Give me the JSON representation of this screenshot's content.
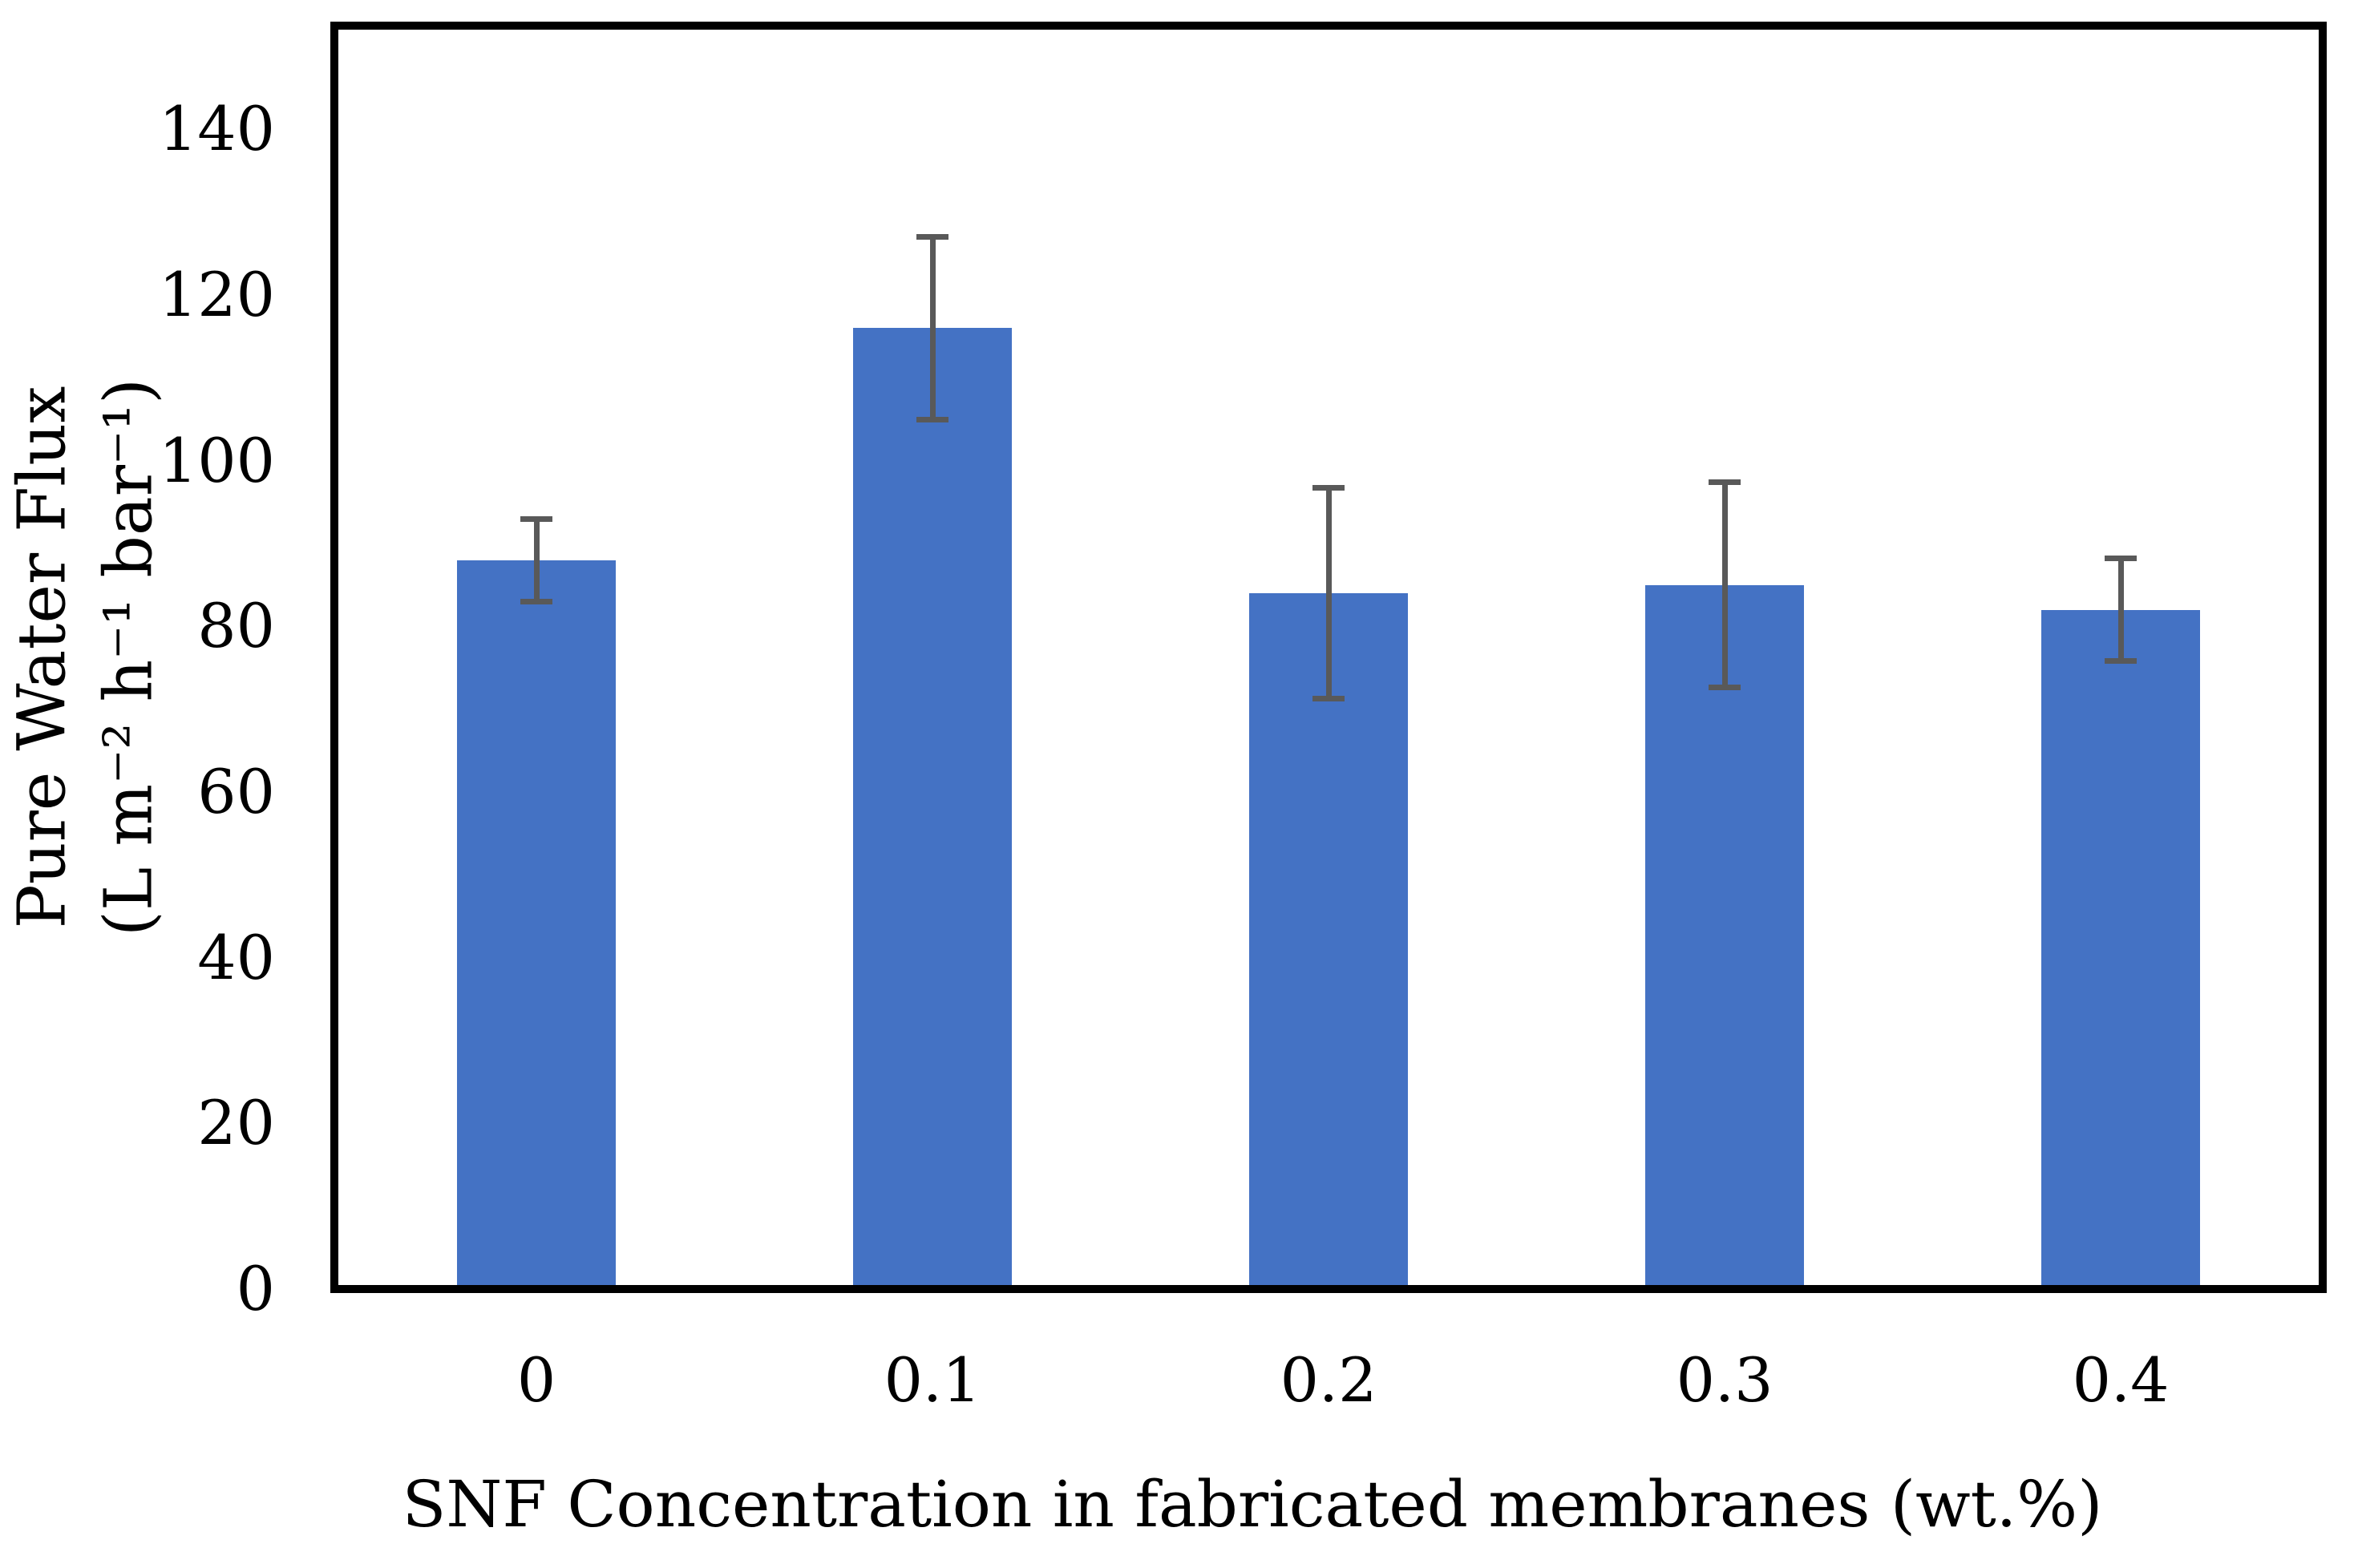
{
  "figure": {
    "background": "#ffffff"
  },
  "chart_data": {
    "type": "bar",
    "categories": [
      "0",
      "0.1",
      "0.2",
      "0.3",
      "0.4"
    ],
    "values": [
      88,
      116,
      84,
      85,
      82
    ],
    "error_bars": [
      5,
      11,
      12.7,
      12.4,
      6.2
    ],
    "title": "",
    "xlabel": "SNF Concentration in fabricated membranes (wt.%)",
    "ylabel_line1": "Pure Water Flux",
    "ylabel_line2": "(L m⁻² h⁻¹ bar⁻¹)",
    "yticks": [
      0,
      20,
      40,
      60,
      80,
      100,
      120,
      140
    ],
    "ylim": [
      0,
      152
    ],
    "grid": false,
    "legend": false,
    "bar_color": "#4472C4",
    "error_color": "#595959",
    "frame_color": "#000000",
    "text_color": "#000000"
  }
}
